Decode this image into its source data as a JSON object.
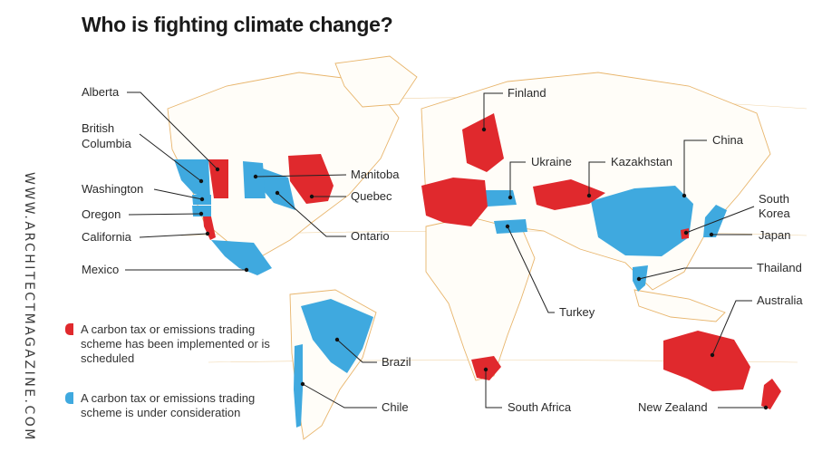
{
  "title": "Who is fighting climate change?",
  "watermark": "WWW.ARCHITECTMAGAZINE.COM",
  "colors": {
    "implemented": "#e0292d",
    "consideration": "#3fa9df",
    "land_outline": "#e8b56c",
    "leader": "#222222"
  },
  "legend": [
    {
      "label": "A carbon tax or emissions trading scheme has been implemented or is scheduled",
      "status": "implemented"
    },
    {
      "label": "A carbon tax or emissions trading scheme is under consideration",
      "status": "consideration"
    }
  ],
  "regions": {
    "alberta": {
      "label": "Alberta",
      "status": "implemented"
    },
    "bc": {
      "label": "British Columbia",
      "line1": "British",
      "line2": "Columbia",
      "status": "consideration"
    },
    "washington": {
      "label": "Washington",
      "status": "consideration"
    },
    "oregon": {
      "label": "Oregon",
      "status": "consideration"
    },
    "california": {
      "label": "California",
      "status": "implemented"
    },
    "mexico": {
      "label": "Mexico",
      "status": "consideration"
    },
    "manitoba": {
      "label": "Manitoba",
      "status": "consideration"
    },
    "quebec": {
      "label": "Quebec",
      "status": "implemented"
    },
    "ontario": {
      "label": "Ontario",
      "status": "consideration"
    },
    "brazil": {
      "label": "Brazil",
      "status": "consideration"
    },
    "chile": {
      "label": "Chile",
      "status": "consideration"
    },
    "finland": {
      "label": "Finland",
      "status": "implemented"
    },
    "ukraine": {
      "label": "Ukraine",
      "status": "consideration"
    },
    "kazakhstan": {
      "label": "Kazakhstan",
      "status": "implemented"
    },
    "china": {
      "label": "China",
      "status": "consideration"
    },
    "south_korea": {
      "label": "South Korea",
      "line1": "South",
      "line2": "Korea",
      "status": "implemented"
    },
    "japan": {
      "label": "Japan",
      "status": "consideration"
    },
    "thailand": {
      "label": "Thailand",
      "status": "consideration"
    },
    "australia": {
      "label": "Australia",
      "status": "implemented"
    },
    "turkey": {
      "label": "Turkey",
      "status": "consideration"
    },
    "south_africa": {
      "label": "South Africa",
      "status": "implemented"
    },
    "new_zealand": {
      "label": "New Zealand",
      "status": "implemented"
    },
    "europe": {
      "status": "implemented"
    }
  }
}
